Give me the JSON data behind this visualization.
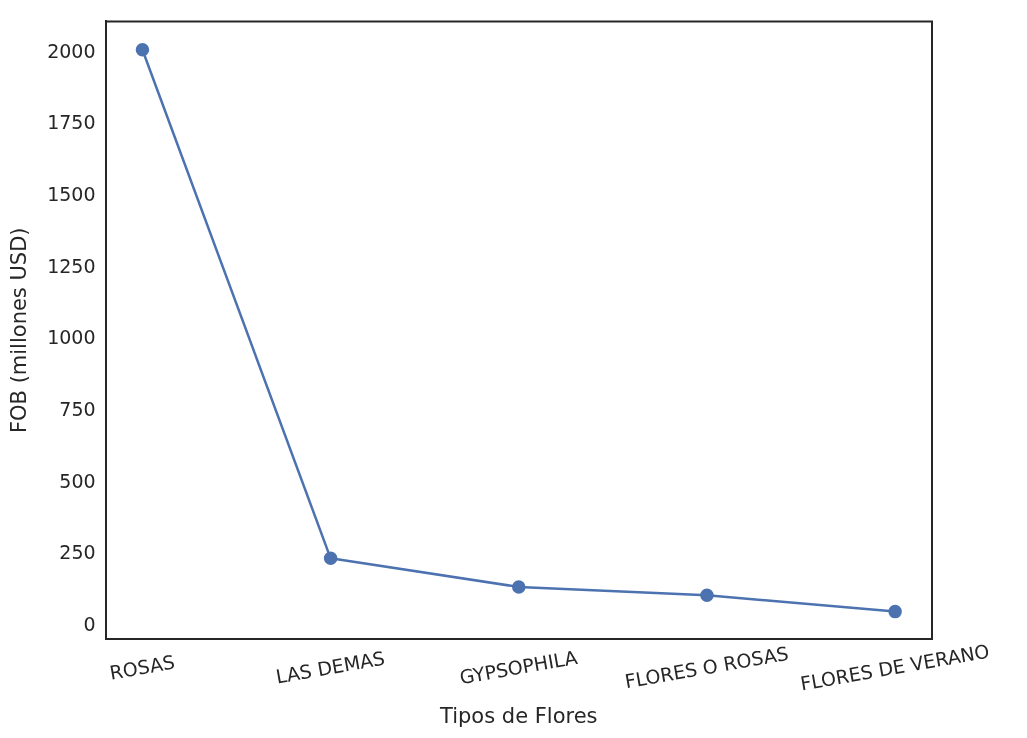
{
  "chart_data": {
    "type": "line",
    "xlabel": "Tipos de Flores",
    "ylabel": "FOB (millones USD)",
    "categories": [
      "ROSAS",
      "LAS DEMAS",
      "GYPSOPHILA",
      "FLORES O ROSAS",
      "FLORES DE VERANO"
    ],
    "series": [
      {
        "color": "#4c72b0",
        "values": [
          2011,
          236,
          136,
          107,
          50
        ]
      }
    ],
    "ylim": [
      -46,
      2110
    ],
    "yticks": [
      0,
      250,
      500,
      750,
      1000,
      1250,
      1500,
      1750,
      2000
    ],
    "grid": false,
    "legend": false,
    "marker": "circle",
    "line_style": "solid"
  }
}
